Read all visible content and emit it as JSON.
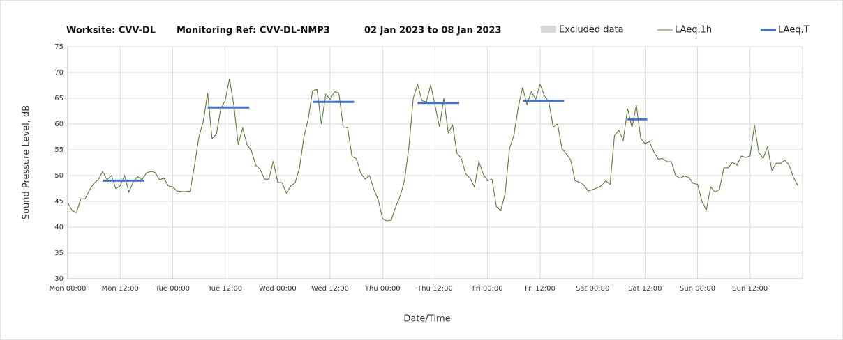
{
  "chart_data": {
    "type": "line",
    "title_parts": [
      "Worksite: CVV-DL",
      "Monitoring Ref: CVV-DL-NMP3",
      "02 Jan 2023 to 08 Jan 2023"
    ],
    "xlabel": "Date/Time",
    "ylabel": "Sound Pressure Level, dB",
    "excluded": {
      "name": "Excluded data",
      "color": "#d9d9d9"
    },
    "x": [
      0,
      1,
      2,
      3,
      4,
      5,
      6,
      7,
      8,
      9,
      10,
      11,
      12,
      13,
      14,
      15,
      16,
      17,
      18,
      19,
      20,
      21,
      22,
      23,
      24,
      25,
      26,
      27,
      28,
      29,
      30,
      31,
      32,
      33,
      34,
      35,
      36,
      37,
      38,
      39,
      40,
      41,
      42,
      43,
      44,
      45,
      46,
      47,
      48,
      49,
      50,
      51,
      52,
      53,
      54,
      55,
      56,
      57,
      58,
      59,
      60,
      61,
      62,
      63,
      64,
      65,
      66,
      67,
      68,
      69,
      70,
      71,
      72,
      73,
      74,
      75,
      76,
      77,
      78,
      79,
      80,
      81,
      82,
      83,
      84,
      85,
      86,
      87,
      88,
      89,
      90,
      91,
      92,
      93,
      94,
      95,
      96,
      97,
      98,
      99,
      100,
      101,
      102,
      103,
      104,
      105,
      106,
      107,
      108,
      109,
      110,
      111,
      112,
      113,
      114,
      115,
      116,
      117,
      118,
      119,
      120,
      121,
      122,
      123,
      124,
      125,
      126,
      127,
      128,
      129,
      130,
      131,
      132,
      133,
      134,
      135,
      136,
      137,
      138,
      139,
      140,
      141,
      142,
      143,
      144,
      145,
      146,
      147,
      148,
      149,
      150,
      151,
      152,
      153,
      154,
      155,
      156,
      157,
      158,
      159,
      160,
      161,
      162,
      163,
      164,
      165,
      166,
      167
    ],
    "series": [
      {
        "name": "LAeq,1h",
        "color": "#5a7a3a",
        "values": [
          44.8,
          43.2,
          42.8,
          45.5,
          45.5,
          47.2,
          48.5,
          49.2,
          50.8,
          49.2,
          50.0,
          47.5,
          48.0,
          50.0,
          46.8,
          48.8,
          49.8,
          49.2,
          50.5,
          50.8,
          50.6,
          49.2,
          49.5,
          48.0,
          47.8,
          47.0,
          46.9,
          46.9,
          47.0,
          52.0,
          57.5,
          60.5,
          66.0,
          57.2,
          58.0,
          63.0,
          64.5,
          68.8,
          63.5,
          56.0,
          59.2,
          56.0,
          54.8,
          52.0,
          51.2,
          49.3,
          49.3,
          52.8,
          48.7,
          48.6,
          46.6,
          48.0,
          48.6,
          51.5,
          57.5,
          61.0,
          66.5,
          66.7,
          60.0,
          65.8,
          64.8,
          66.3,
          66.0,
          59.4,
          59.3,
          53.7,
          53.3,
          50.5,
          49.3,
          50.0,
          47.3,
          45.3,
          41.6,
          41.2,
          41.4,
          44.0,
          46.0,
          49.0,
          55.5,
          65.0,
          67.7,
          64.5,
          64.3,
          67.6,
          63.5,
          59.4,
          65.0,
          58.3,
          59.8,
          54.4,
          53.3,
          50.3,
          49.5,
          47.8,
          52.7,
          50.3,
          49.0,
          49.3,
          44.0,
          43.2,
          46.5,
          55.2,
          57.8,
          63.2,
          67.1,
          63.8,
          66.3,
          64.8,
          67.7,
          65.5,
          64.3,
          59.4,
          60.0,
          55.2,
          54.2,
          53.0,
          49.0,
          48.7,
          48.2,
          47.0,
          47.3,
          47.6,
          48.0,
          49.0,
          48.3,
          57.7,
          58.8,
          56.8,
          63.0,
          59.3,
          63.7,
          57.2,
          56.2,
          56.6,
          54.6,
          53.2,
          53.3,
          52.7,
          52.7,
          50.0,
          49.5,
          49.9,
          49.6,
          48.5,
          48.3,
          45.0,
          43.3,
          47.8,
          46.8,
          47.3,
          51.5,
          51.5,
          52.6,
          52.0,
          53.8,
          53.5,
          53.8,
          59.8,
          54.5,
          53.3,
          55.6,
          51.0,
          52.4,
          52.4,
          53.0,
          51.9,
          49.5,
          48.0
        ]
      },
      {
        "name": "LAeq,T",
        "color": "#4472c4",
        "x": [
          8,
          17.5,
          null,
          32,
          41.5,
          null,
          56,
          65.5,
          null,
          80,
          89.5,
          null,
          104,
          113.5,
          null,
          128,
          132.5
        ],
        "values": [
          49.0,
          49.0,
          null,
          63.2,
          63.2,
          null,
          64.3,
          64.3,
          null,
          64.1,
          64.1,
          null,
          64.5,
          64.5,
          null,
          60.9,
          60.9
        ]
      }
    ],
    "xlim": [
      0,
      168
    ],
    "xticks": [
      {
        "value": 0,
        "label": "Mon 00:00"
      },
      {
        "value": 12,
        "label": "Mon 12:00"
      },
      {
        "value": 24,
        "label": "Tue 00:00"
      },
      {
        "value": 36,
        "label": "Tue 12:00"
      },
      {
        "value": 48,
        "label": "Wed 00:00"
      },
      {
        "value": 60,
        "label": "Wed 12:00"
      },
      {
        "value": 72,
        "label": "Thu 00:00"
      },
      {
        "value": 84,
        "label": "Thu 12:00"
      },
      {
        "value": 96,
        "label": "Fri 00:00"
      },
      {
        "value": 108,
        "label": "Fri 12:00"
      },
      {
        "value": 120,
        "label": "Sat 00:00"
      },
      {
        "value": 132,
        "label": "Sat 12:00"
      },
      {
        "value": 144,
        "label": "Sun 00:00"
      },
      {
        "value": 156,
        "label": "Sun 12:00"
      }
    ],
    "ylim": [
      30,
      75
    ],
    "yticks": [
      30,
      35,
      40,
      45,
      50,
      55,
      60,
      65,
      70,
      75
    ],
    "grid": true
  }
}
